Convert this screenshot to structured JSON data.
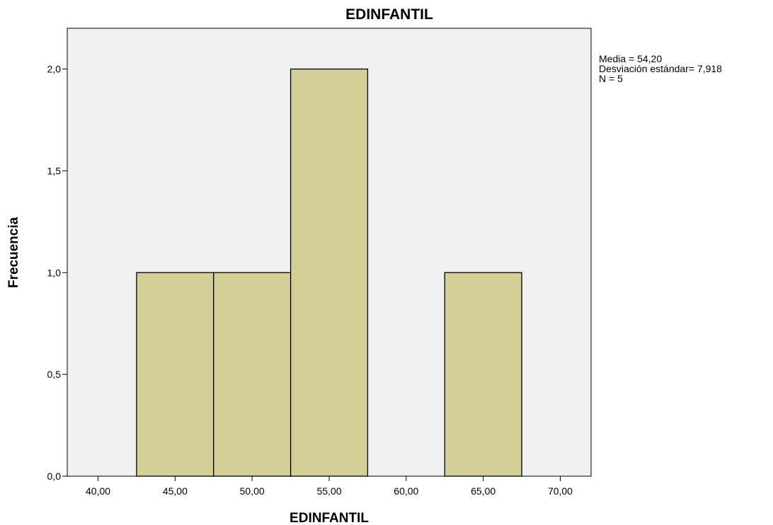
{
  "chart_data": {
    "type": "bar",
    "title": "EDINFANTIL",
    "xlabel": "EDINFANTIL",
    "ylabel": "Frecuencia",
    "x_ticks": [
      "40,00",
      "45,00",
      "50,00",
      "55,00",
      "60,00",
      "65,00",
      "70,00"
    ],
    "y_ticks": [
      "0,0",
      "0,5",
      "1,0",
      "1,5",
      "2,0"
    ],
    "xlim": [
      38,
      72
    ],
    "ylim": [
      0,
      2.2
    ],
    "bins": [
      {
        "from": 42.5,
        "to": 47.5,
        "count": 1
      },
      {
        "from": 47.5,
        "to": 52.5,
        "count": 1
      },
      {
        "from": 52.5,
        "to": 57.5,
        "count": 2
      },
      {
        "from": 62.5,
        "to": 67.5,
        "count": 1
      }
    ],
    "colors": {
      "bar": "#d4cf97",
      "plot_bg": "#f0f0f0",
      "edge": "#000000"
    },
    "grid": false
  },
  "stats": {
    "line1": "Media = 54,20",
    "line2": "Desviación estándar= 7,918",
    "line3": "N = 5"
  }
}
